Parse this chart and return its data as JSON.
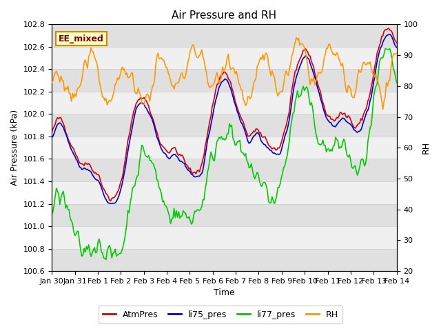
{
  "title": "Air Pressure and RH",
  "xlabel": "Time",
  "ylabel_left": "Air Pressure (kPa)",
  "ylabel_right": "RH",
  "ylim_left": [
    100.6,
    102.8
  ],
  "ylim_right": [
    20,
    100
  ],
  "annotation": "EE_mixed",
  "bg_color": "#ffffff",
  "plot_bg_color": "#f0f0f0",
  "stripe_color": "#e0e0e0",
  "line_colors": {
    "AtmPres": "#dd0000",
    "li75_pres": "#0000dd",
    "li77_pres": "#00cc00",
    "RH": "#ff9900"
  },
  "line_widths": {
    "AtmPres": 1.2,
    "li75_pres": 1.2,
    "li77_pres": 1.2,
    "RH": 1.2
  },
  "x_ticks": [
    0,
    1,
    2,
    3,
    4,
    5,
    6,
    7,
    8,
    9,
    10,
    11,
    12,
    13,
    14,
    15
  ],
  "x_tick_labels": [
    "Jan 30",
    "Jan 31",
    "Feb 1",
    "Feb 2",
    "Feb 3",
    "Feb 4",
    "Feb 5",
    "Feb 6",
    "Feb 7",
    "Feb 8",
    "Feb 9",
    "Feb 10",
    "Feb 11",
    "Feb 12",
    "Feb 13",
    "Feb 14"
  ],
  "yticks_left": [
    100.6,
    100.8,
    101.0,
    101.2,
    101.4,
    101.6,
    101.8,
    102.0,
    102.2,
    102.4,
    102.6,
    102.8
  ],
  "yticks_right": [
    20,
    30,
    40,
    50,
    60,
    70,
    80,
    90,
    100
  ],
  "title_fontsize": 11,
  "tick_fontsize": 8,
  "label_fontsize": 9,
  "legend_fontsize": 9
}
